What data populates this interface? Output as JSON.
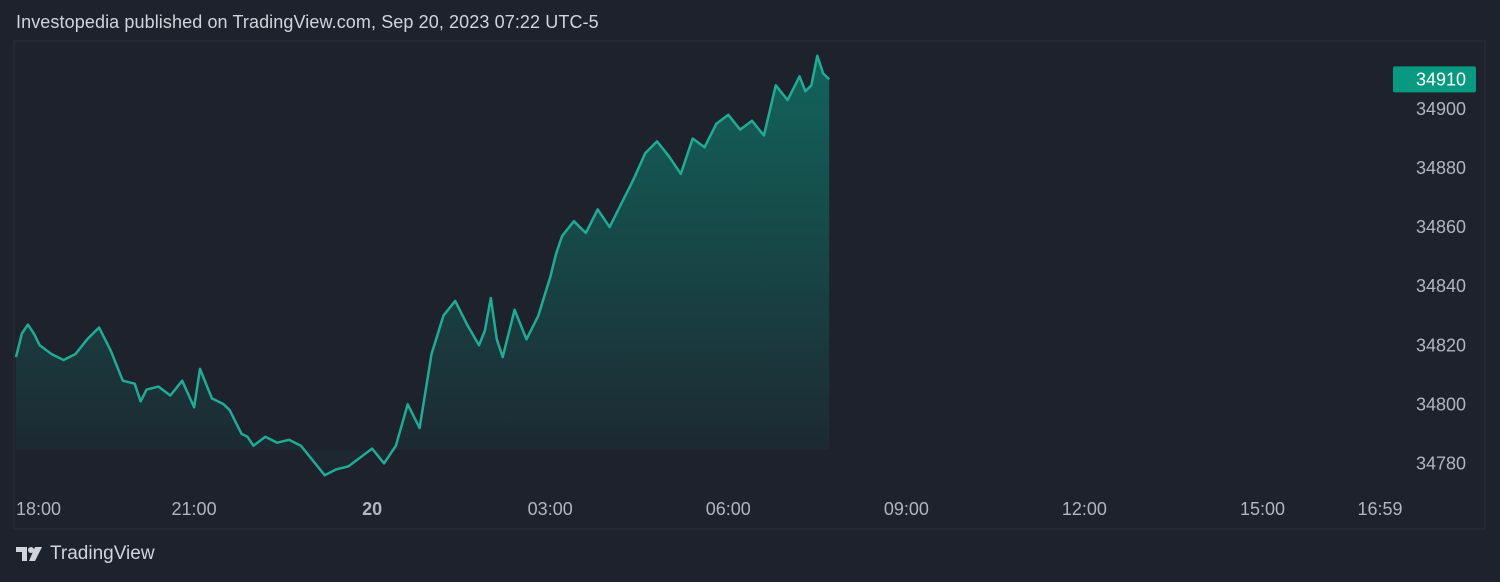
{
  "header": {
    "attribution": "Investopedia published on TradingView.com, Sep 20, 2023 07:22 UTC-5"
  },
  "footer": {
    "brand": "TradingView",
    "logo_icon": "tradingview-logo-icon"
  },
  "colors": {
    "background": "#1e222d",
    "line": "#22ab94",
    "price_tag": "#089981",
    "axis_text": "#b2b5be"
  },
  "chart_data": {
    "type": "area",
    "title": "",
    "xlabel": "",
    "ylabel": "",
    "x_ticks": [
      "18:00",
      "21:00",
      "20",
      "03:00",
      "06:00",
      "09:00",
      "12:00",
      "15:00",
      "16:59"
    ],
    "x_tick_hours": [
      0,
      3,
      6,
      9,
      12,
      15,
      18,
      21,
      22.98
    ],
    "y_ticks": [
      34780,
      34800,
      34820,
      34840,
      34860,
      34880,
      34900
    ],
    "ylim": [
      34771,
      34923
    ],
    "xlim_hours": [
      0,
      22.98
    ],
    "last_price_label": "34910",
    "last_price": 34910,
    "series": [
      {
        "x_hours": [
          0.0,
          0.1,
          0.2,
          0.3,
          0.4,
          0.6,
          0.8,
          1.0,
          1.2,
          1.4,
          1.6,
          1.8,
          2.0,
          2.1,
          2.2,
          2.4,
          2.6,
          2.8,
          3.0,
          3.1,
          3.3,
          3.5,
          3.6,
          3.7,
          3.8,
          3.9,
          4.0,
          4.2,
          4.4,
          4.6,
          4.8,
          5.0,
          5.2,
          5.4,
          5.6,
          5.8,
          6.0,
          6.2,
          6.4,
          6.6,
          6.8,
          7.0,
          7.2,
          7.4,
          7.6,
          7.8,
          7.9,
          8.0,
          8.1,
          8.2,
          8.4,
          8.6,
          8.8,
          9.0,
          9.1,
          9.2,
          9.4,
          9.6,
          9.8,
          10.0,
          10.2,
          10.4,
          10.6,
          10.8,
          11.0,
          11.2,
          11.4,
          11.6,
          11.8,
          12.0,
          12.2,
          12.4,
          12.6,
          12.8,
          13.0,
          13.2,
          13.3,
          13.4,
          13.5,
          13.6,
          13.7
        ],
        "values": [
          34816,
          34824,
          34827,
          34824,
          34820,
          34817,
          34815,
          34817,
          34822,
          34826,
          34818,
          34808,
          34807,
          34801,
          34805,
          34806,
          34803,
          34808,
          34799,
          34812,
          34802,
          34800,
          34798,
          34794,
          34790,
          34789,
          34786,
          34789,
          34787,
          34788,
          34786,
          34781,
          34776,
          34778,
          34779,
          34782,
          34785,
          34780,
          34786,
          34800,
          34792,
          34817,
          34830,
          34835,
          34827,
          34820,
          34825,
          34836,
          34822,
          34816,
          34832,
          34822,
          34830,
          34843,
          34851,
          34857,
          34862,
          34858,
          34866,
          34860,
          34868,
          34876,
          34885,
          34889,
          34884,
          34878,
          34890,
          34887,
          34895,
          34898,
          34893,
          34896,
          34891,
          34908,
          34903,
          34911,
          34906,
          34908,
          34918,
          34912,
          34910
        ]
      }
    ]
  }
}
